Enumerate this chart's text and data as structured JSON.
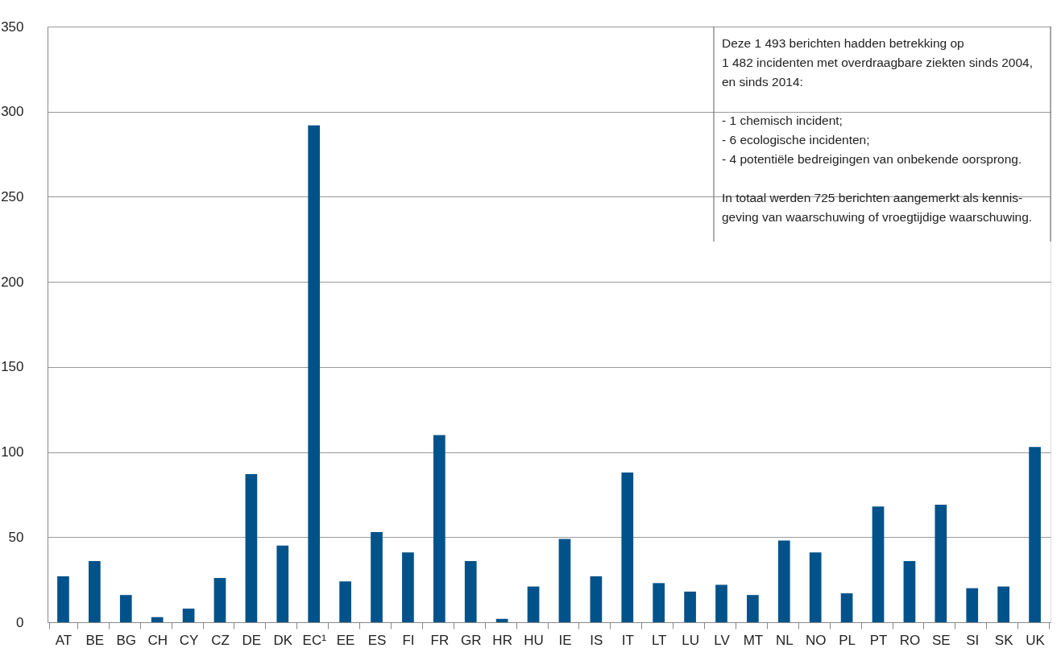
{
  "chart_data": {
    "type": "bar",
    "categories": [
      "AT",
      "BE",
      "BG",
      "CH",
      "CY",
      "CZ",
      "DE",
      "DK",
      "EC¹",
      "EE",
      "ES",
      "FI",
      "FR",
      "GR",
      "HR",
      "HU",
      "IE",
      "IS",
      "IT",
      "LT",
      "LU",
      "LV",
      "MT",
      "NL",
      "NO",
      "PL",
      "PT",
      "RO",
      "SE",
      "SI",
      "SK",
      "UK"
    ],
    "values": [
      27,
      36,
      16,
      3,
      8,
      26,
      87,
      45,
      292,
      24,
      53,
      41,
      110,
      36,
      2,
      21,
      49,
      27,
      88,
      23,
      18,
      22,
      16,
      48,
      41,
      17,
      68,
      36,
      69,
      20,
      21,
      103
    ],
    "color": "#00528a",
    "ylim": [
      0,
      350
    ],
    "yticks": [
      0,
      50,
      100,
      150,
      200,
      250,
      300,
      350
    ],
    "grid": "y",
    "legend": false,
    "annotations": [
      "Deze 1 493 berichten hadden betrekking op\n1 482 incidenten met overdraagbare ziekten sinds 2004,\nen sinds 2014:\n\n- 1 chemisch incident;\n- 6 ecologische incidenten;\n- 4 potentiële bedreigingen van onbekende oorsprong.\n\nIn totaal werden 725 berichten aangemerkt als kennis-\ngeving van waarschuwing of vroegtijdige waarschuwing."
    ]
  }
}
